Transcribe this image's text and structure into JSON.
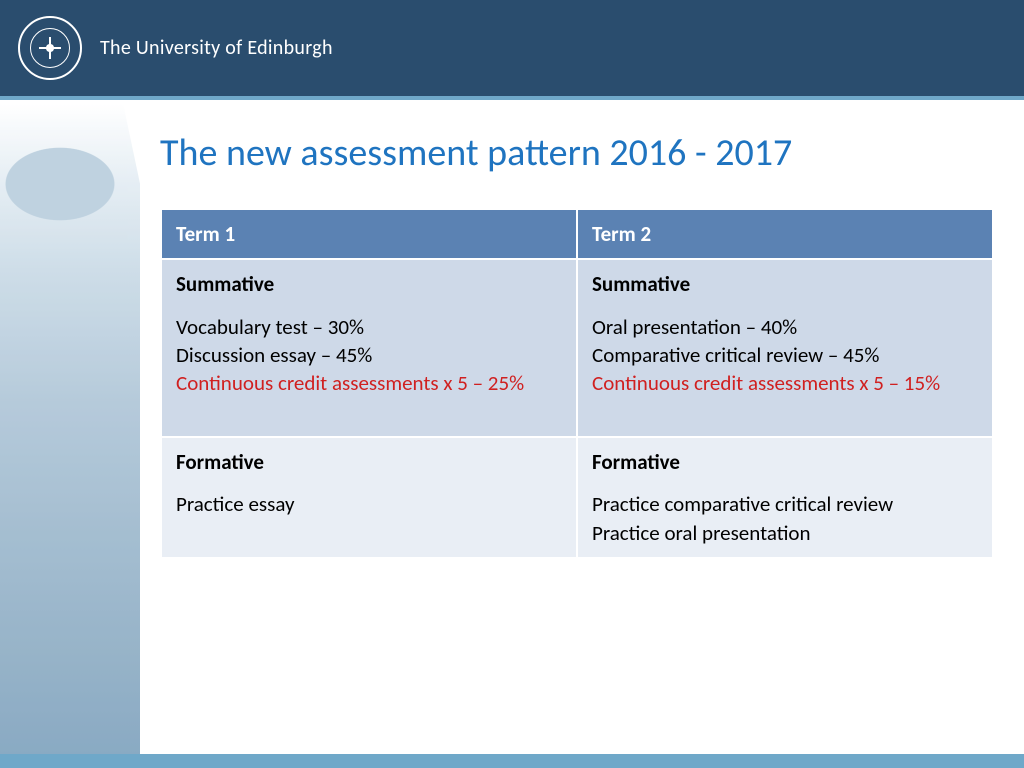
{
  "header": {
    "university_name": "The University of Edinburgh"
  },
  "title": "The new assessment pattern 2016 - 2017",
  "table": {
    "columns": [
      "Term 1",
      "Term 2"
    ],
    "header_bg": "#5b82b3",
    "header_fg": "#ffffff",
    "row_bg_summative": "#ced9e8",
    "row_bg_formative": "#e9eef5",
    "highlight_color": "#d02020",
    "cells": {
      "t1_summative_label": "Summative",
      "t1_line1": "Vocabulary test – 30%",
      "t1_line2": "Discussion essay – 45%",
      "t1_line3": "Continuous credit assessments x 5 – 25%",
      "t2_summative_label": "Summative",
      "t2_line1": "Oral presentation – 40%",
      "t2_line2": "Comparative critical review – 45%",
      "t2_line3": "Continuous credit assessments x 5 – 15%",
      "t1_formative_label": "Formative",
      "t1_f_line1": "Practice essay",
      "t2_formative_label": "Formative",
      "t2_f_line1": "Practice comparative critical review",
      "t2_f_line2": "Practice oral presentation"
    }
  },
  "colors": {
    "header_band": "#2a4d6e",
    "accent_band": "#6fa8c9",
    "title_color": "#1f74c0"
  },
  "typography": {
    "title_fontsize": 38,
    "body_fontsize": 21,
    "font_family": "Calibri"
  }
}
